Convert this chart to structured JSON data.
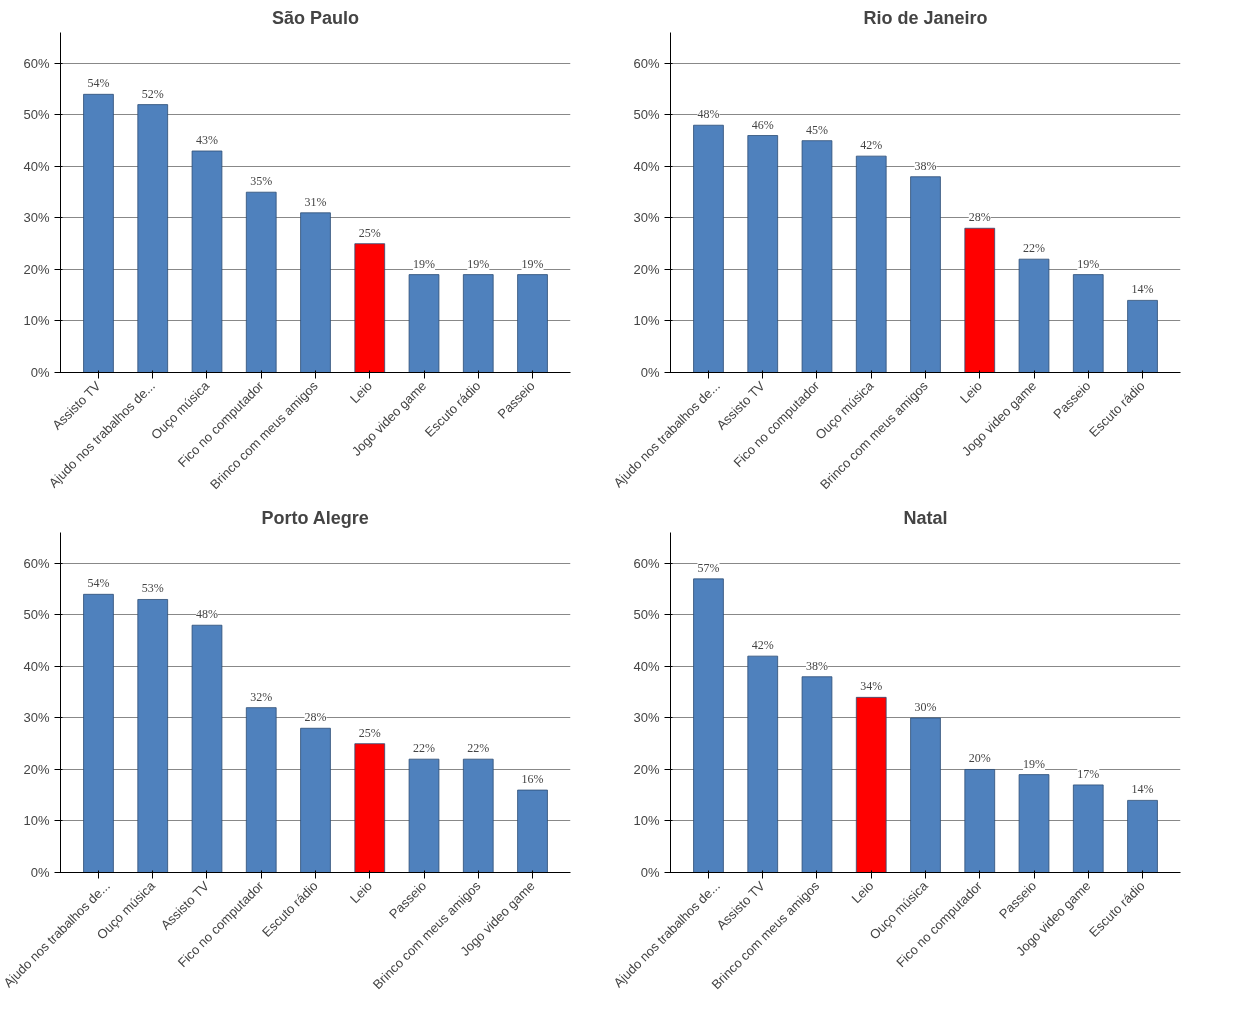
{
  "chart_data": [
    {
      "type": "bar",
      "title": "São Paulo",
      "categories": [
        "Assisto TV",
        "Ajudo nos trabalhos de...",
        "Ouço música",
        "Fico no computador",
        "Brinco com meus amigos",
        "Leio",
        "Jogo video game",
        "Escuto rádio",
        "Passeio"
      ],
      "values": [
        54,
        52,
        43,
        35,
        31,
        25,
        19,
        19,
        19
      ],
      "value_labels": [
        "54%",
        "52%",
        "43%",
        "35%",
        "31%",
        "25%",
        "19%",
        "19%",
        "19%"
      ],
      "colors": [
        "#4f81bd",
        "#4f81bd",
        "#4f81bd",
        "#4f81bd",
        "#4f81bd",
        "#ff0000",
        "#4f81bd",
        "#4f81bd",
        "#4f81bd"
      ],
      "ylim": [
        0,
        60
      ],
      "yticks": [
        {
          "value": 0,
          "label": "0%"
        },
        {
          "value": 10,
          "label": "10%"
        },
        {
          "value": 20,
          "label": "20%"
        },
        {
          "value": 30,
          "label": "30%"
        },
        {
          "value": 40,
          "label": "40%"
        },
        {
          "value": 50,
          "label": "50%"
        },
        {
          "value": 60,
          "label": "60%"
        }
      ],
      "grid": "y"
    },
    {
      "type": "bar",
      "title": "Rio de Janeiro",
      "categories": [
        "Ajudo nos trabalhos de...",
        "Assisto TV",
        "Fico no computador",
        "Ouço música",
        "Brinco com meus amigos",
        "Leio",
        "Jogo video game",
        "Passeio",
        "Escuto rádio"
      ],
      "values": [
        48,
        46,
        45,
        42,
        38,
        28,
        22,
        19,
        14
      ],
      "value_labels": [
        "48%",
        "46%",
        "45%",
        "42%",
        "38%",
        "28%",
        "22%",
        "19%",
        "14%"
      ],
      "colors": [
        "#4f81bd",
        "#4f81bd",
        "#4f81bd",
        "#4f81bd",
        "#4f81bd",
        "#ff0000",
        "#4f81bd",
        "#4f81bd",
        "#4f81bd"
      ],
      "ylim": [
        0,
        60
      ],
      "yticks": [
        {
          "value": 0,
          "label": "0%"
        },
        {
          "value": 10,
          "label": "10%"
        },
        {
          "value": 20,
          "label": "20%"
        },
        {
          "value": 30,
          "label": "30%"
        },
        {
          "value": 40,
          "label": "40%"
        },
        {
          "value": 50,
          "label": "50%"
        },
        {
          "value": 60,
          "label": "60%"
        }
      ],
      "grid": "y"
    },
    {
      "type": "bar",
      "title": "Porto Alegre",
      "categories": [
        "Ajudo nos trabalhos de...",
        "Ouço música",
        "Assisto TV",
        "Fico no computador",
        "Escuto rádio",
        "Leio",
        "Passeio",
        "Brinco com meus amigos",
        "Jogo video game"
      ],
      "values": [
        54,
        53,
        48,
        32,
        28,
        25,
        22,
        22,
        16
      ],
      "value_labels": [
        "54%",
        "53%",
        "48%",
        "32%",
        "28%",
        "25%",
        "22%",
        "22%",
        "16%"
      ],
      "colors": [
        "#4f81bd",
        "#4f81bd",
        "#4f81bd",
        "#4f81bd",
        "#4f81bd",
        "#ff0000",
        "#4f81bd",
        "#4f81bd",
        "#4f81bd"
      ],
      "ylim": [
        0,
        60
      ],
      "yticks": [
        {
          "value": 0,
          "label": "0%"
        },
        {
          "value": 10,
          "label": "10%"
        },
        {
          "value": 20,
          "label": "20%"
        },
        {
          "value": 30,
          "label": "30%"
        },
        {
          "value": 40,
          "label": "40%"
        },
        {
          "value": 50,
          "label": "50%"
        },
        {
          "value": 60,
          "label": "60%"
        }
      ],
      "grid": "y"
    },
    {
      "type": "bar",
      "title": "Natal",
      "categories": [
        "Ajudo nos trabalhos de...",
        "Assisto TV",
        "Brinco com meus amigos",
        "Leio",
        "Ouço música",
        "Fico no computador",
        "Passeio",
        "Jogo video game",
        "Escuto rádio"
      ],
      "values": [
        57,
        42,
        38,
        34,
        30,
        20,
        19,
        17,
        14
      ],
      "value_labels": [
        "57%",
        "42%",
        "38%",
        "34%",
        "30%",
        "20%",
        "19%",
        "17%",
        "14%"
      ],
      "colors": [
        "#4f81bd",
        "#4f81bd",
        "#4f81bd",
        "#ff0000",
        "#4f81bd",
        "#4f81bd",
        "#4f81bd",
        "#4f81bd",
        "#4f81bd"
      ],
      "ylim": [
        0,
        60
      ],
      "yticks": [
        {
          "value": 0,
          "label": "0%"
        },
        {
          "value": 10,
          "label": "10%"
        },
        {
          "value": 20,
          "label": "20%"
        },
        {
          "value": 30,
          "label": "30%"
        },
        {
          "value": 40,
          "label": "40%"
        },
        {
          "value": 50,
          "label": "50%"
        },
        {
          "value": 60,
          "label": "60%"
        }
      ],
      "grid": "y"
    }
  ]
}
